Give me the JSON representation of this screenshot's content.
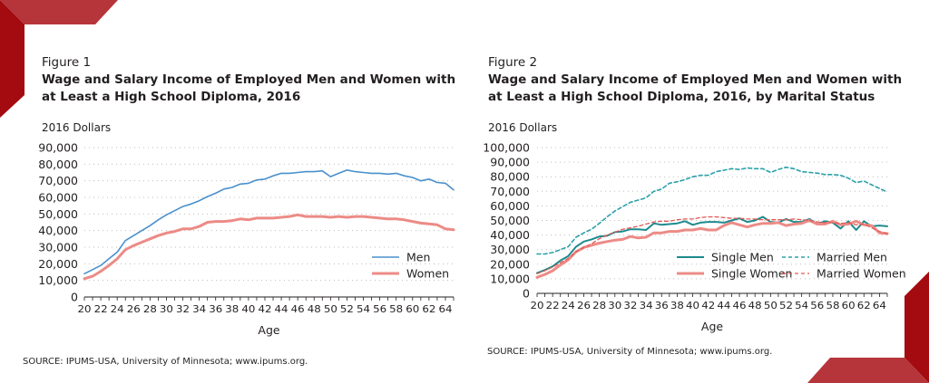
{
  "colors": {
    "brand_red_dark": "#a30b10",
    "brand_red_light": "#b6353a",
    "men_blue": "#4a90cc",
    "women_pink": "#ec8b86",
    "single_men_teal": "#1d8a8e",
    "married_men_teal": "#2aa0a8",
    "married_women_red": "#e05a55",
    "grid": "#bdbdbd",
    "text": "#231f20"
  },
  "figures": [
    {
      "label": "Figure 1",
      "title_line1": "Wage and Salary Income of Employed Men and Women with",
      "title_line2": "at Least a High School Diploma, 2016",
      "units": "2016 Dollars",
      "source": "SOURCE: IPUMS-USA, University of Minnesota; www.ipums.org."
    },
    {
      "label": "Figure 2",
      "title_line1": "Wage and Salary Income of Employed Men and Women with",
      "title_line2": "at Least a High School Diploma, 2016, by Marital Status",
      "units": "2016 Dollars",
      "source": "SOURCE: IPUMS-USA, University of Minnesota; www.ipums.org."
    }
  ],
  "chart_data": [
    {
      "type": "line",
      "title": "Wage and Salary Income of Employed Men and Women with at Least a High School Diploma, 2016",
      "xlabel": "Age",
      "ylabel": "2016 Dollars",
      "xlim": [
        20,
        65
      ],
      "ylim": [
        0,
        90000
      ],
      "yticks": [
        0,
        10000,
        20000,
        30000,
        40000,
        50000,
        60000,
        70000,
        80000,
        90000
      ],
      "ytick_labels": [
        "0",
        "10,000",
        "20,000",
        "30,000",
        "40,000",
        "50,000",
        "60,000",
        "70,000",
        "80,000",
        "90,000"
      ],
      "xtick_labels": [
        "20",
        "22",
        "24",
        "26",
        "28",
        "30",
        "32",
        "34",
        "36",
        "38",
        "40",
        "42",
        "44",
        "46",
        "48",
        "50",
        "52",
        "54",
        "56",
        "58",
        "60",
        "62",
        "64"
      ],
      "grid": true,
      "legend": "bottom-right",
      "x": [
        20,
        21,
        22,
        23,
        24,
        25,
        26,
        27,
        28,
        29,
        30,
        31,
        32,
        33,
        34,
        35,
        36,
        37,
        38,
        39,
        40,
        41,
        42,
        43,
        44,
        45,
        46,
        47,
        48,
        49,
        50,
        51,
        52,
        53,
        54,
        55,
        56,
        57,
        58,
        59,
        60,
        61,
        62,
        63,
        64,
        65
      ],
      "series": [
        {
          "name": "Men",
          "style": "solid",
          "values": [
            14000,
            16500,
            19000,
            23000,
            27000,
            34000,
            37000,
            40000,
            43000,
            46500,
            49500,
            52000,
            54500,
            56000,
            58000,
            60500,
            62500,
            65000,
            66000,
            68000,
            68500,
            70500,
            71000,
            73000,
            74500,
            74500,
            75000,
            75500,
            75500,
            76000,
            72500,
            74500,
            76500,
            75500,
            75000,
            74500,
            74500,
            74000,
            74500,
            73000,
            72000,
            70000,
            71000,
            69000,
            68500,
            64500
          ]
        },
        {
          "name": "Women",
          "style": "solid-thick",
          "values": [
            11000,
            12500,
            15500,
            19000,
            23000,
            28500,
            31000,
            33000,
            35000,
            37000,
            38500,
            39500,
            41000,
            41000,
            42500,
            45000,
            45500,
            45500,
            46000,
            47000,
            46500,
            47500,
            47500,
            47500,
            48000,
            48500,
            49500,
            48500,
            48500,
            48500,
            48000,
            48500,
            48000,
            48500,
            48500,
            48000,
            47500,
            47000,
            47000,
            46500,
            45500,
            44500,
            44000,
            43500,
            41000,
            40500
          ]
        }
      ]
    },
    {
      "type": "line",
      "title": "Wage and Salary Income of Employed Men and Women with at Least a High School Diploma, 2016, by Marital Status",
      "xlabel": "Age",
      "ylabel": "2016 Dollars",
      "xlim": [
        20,
        65
      ],
      "ylim": [
        0,
        100000
      ],
      "yticks": [
        0,
        10000,
        20000,
        30000,
        40000,
        50000,
        60000,
        70000,
        80000,
        90000,
        100000
      ],
      "ytick_labels": [
        "0",
        "10,000",
        "20,000",
        "30,000",
        "40,000",
        "50,000",
        "60,000",
        "70,000",
        "80,000",
        "90,000",
        "100,000"
      ],
      "xtick_labels": [
        "20",
        "22",
        "24",
        "26",
        "28",
        "30",
        "32",
        "34",
        "36",
        "38",
        "40",
        "42",
        "44",
        "46",
        "48",
        "50",
        "52",
        "54",
        "56",
        "58",
        "60",
        "62",
        "64"
      ],
      "grid": true,
      "legend": "bottom-right",
      "x": [
        20,
        21,
        22,
        23,
        24,
        25,
        26,
        27,
        28,
        29,
        30,
        31,
        32,
        33,
        34,
        35,
        36,
        37,
        38,
        39,
        40,
        41,
        42,
        43,
        44,
        45,
        46,
        47,
        48,
        49,
        50,
        51,
        52,
        53,
        54,
        55,
        56,
        57,
        58,
        59,
        60,
        61,
        62,
        63,
        64,
        65
      ],
      "series": [
        {
          "name": "Single Men",
          "style": "solid",
          "values": [
            14000,
            16000,
            18500,
            22500,
            25500,
            32000,
            35500,
            37000,
            39000,
            39500,
            42000,
            42500,
            44000,
            44000,
            43500,
            48000,
            47000,
            47500,
            48000,
            49500,
            47000,
            48500,
            49000,
            49000,
            48500,
            50000,
            51500,
            49000,
            50000,
            52500,
            49000,
            48500,
            51000,
            49000,
            49000,
            51000,
            47500,
            49500,
            48500,
            44500,
            49500,
            43500,
            49500,
            46000,
            46500,
            46000
          ]
        },
        {
          "name": "Single Women",
          "style": "solid-thick",
          "values": [
            11000,
            13000,
            15500,
            19500,
            23000,
            28500,
            31500,
            33000,
            34500,
            35500,
            36500,
            37000,
            39000,
            38000,
            38500,
            41500,
            41500,
            42500,
            42500,
            43500,
            43500,
            44500,
            43500,
            43500,
            46500,
            48500,
            47000,
            45500,
            47000,
            48000,
            48000,
            48500,
            46500,
            47500,
            48000,
            50000,
            47500,
            47500,
            49500,
            47000,
            47500,
            49500,
            47000,
            46500,
            41500,
            41000
          ]
        },
        {
          "name": "Married Men",
          "style": "dashed",
          "values": [
            27000,
            27000,
            28000,
            30000,
            32000,
            38500,
            41500,
            44000,
            48000,
            52500,
            56500,
            59500,
            62500,
            64000,
            65500,
            70000,
            71500,
            75500,
            76500,
            78000,
            80000,
            81000,
            81000,
            83500,
            84500,
            85500,
            85000,
            86000,
            85500,
            85500,
            83000,
            85000,
            86500,
            85500,
            83500,
            83000,
            82500,
            81500,
            81500,
            81000,
            79000,
            76000,
            77000,
            74500,
            72000,
            69500
          ]
        },
        {
          "name": "Married Women",
          "style": "dashed-thin",
          "values": [
            13500,
            15500,
            18000,
            21000,
            24000,
            28500,
            31500,
            34000,
            37500,
            40000,
            42000,
            44000,
            45000,
            46000,
            47500,
            49000,
            49500,
            49500,
            50500,
            51000,
            51000,
            52000,
            52500,
            52500,
            52000,
            51500,
            51500,
            51000,
            51000,
            50500,
            50500,
            50500,
            50500,
            51000,
            50500,
            50000,
            49000,
            48500,
            48500,
            48000,
            48500,
            47000,
            47500,
            45000,
            42500,
            41000
          ]
        }
      ]
    }
  ]
}
